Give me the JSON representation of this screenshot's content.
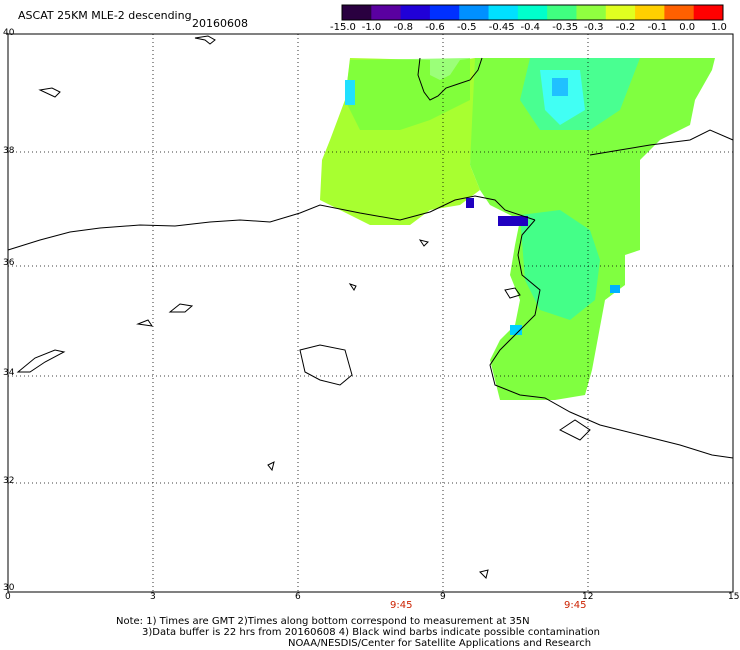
{
  "title": "ASCAT 25KM MLE-2 descending",
  "date": "20160608",
  "colorbar": {
    "labels": [
      "-15.0",
      "-1.0",
      "-0.8",
      "-0.6",
      "-0.5",
      "-0.45",
      "-0.4",
      "-0.35",
      "-0.3",
      "-0.2",
      "-0.1",
      "0.0",
      "1.0"
    ],
    "colors": [
      "#2a0040",
      "#5a00a0",
      "#2000d8",
      "#0030ff",
      "#0090ff",
      "#00e0ff",
      "#00ffcc",
      "#40ff80",
      "#90ff40",
      "#e0ff20",
      "#ffd000",
      "#ff6000",
      "#ff0000"
    ]
  },
  "axes": {
    "x_ticks": [
      "0",
      "3",
      "6",
      "9",
      "12",
      "15"
    ],
    "y_ticks": [
      "40",
      "38",
      "36",
      "34",
      "32",
      "30"
    ]
  },
  "times": [
    "9:45",
    "9:45"
  ],
  "notes": {
    "line1": "Note: 1) Times are GMT 2)Times along bottom correspond to measurement at 35N",
    "line2": "3)Data buffer is 22 hrs from 20160608 4) Black wind barbs indicate possible contamination",
    "line3": "NOAA/NESDIS/Center for Satellite Applications and Research"
  }
}
